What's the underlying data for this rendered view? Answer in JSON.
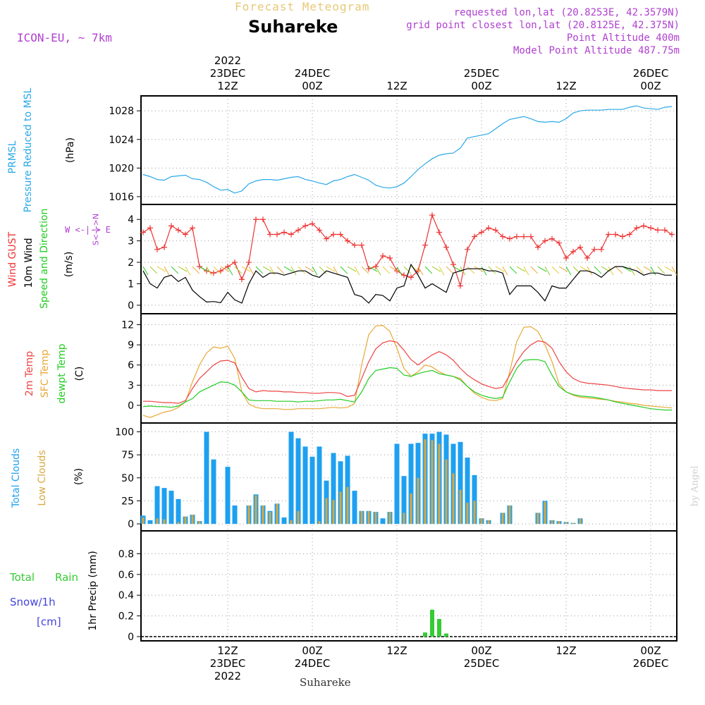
{
  "header": {
    "top_title": "Forecast Meteogram",
    "location": "Suhareke",
    "model": "ICON-EU, ~ 7km",
    "requested": "requested lon,lat (20.8253E, 42.3579N)",
    "grid_point": "grid point closest lon,lat (20.8125E, 42.375N)",
    "point_altitude": "Point Altitude 400m",
    "model_altitude": "Model Point Altitude 487.75m",
    "credit": "by Angel",
    "footer_location": "Suhareke"
  },
  "colors": {
    "pressure": "#2aa8e8",
    "gust": "#ee3333",
    "wind": "#000000",
    "temp2m": "#ee4444",
    "sfc_temp": "#e8a838",
    "dewpt": "#22cc22",
    "total_clouds": "#1ea0f0",
    "low_clouds": "#d8a840",
    "rain": "#33cc33",
    "snow": "#4444dd",
    "axis_purple": "#b040d0"
  },
  "time_axis": {
    "top_labels": [
      {
        "lines": [
          "2022",
          "23DEC",
          "12Z"
        ],
        "x": 12
      },
      {
        "lines": [
          "24DEC",
          "00Z"
        ],
        "x": 24
      },
      {
        "lines": [
          "12Z"
        ],
        "x": 36
      },
      {
        "lines": [
          "25DEC",
          "00Z"
        ],
        "x": 48
      },
      {
        "lines": [
          "12Z"
        ],
        "x": 60
      },
      {
        "lines": [
          "26DEC",
          "00Z"
        ],
        "x": 72
      }
    ],
    "bottom_labels": [
      {
        "lines": [
          "12Z",
          "23DEC",
          "2022"
        ],
        "x": 12
      },
      {
        "lines": [
          "00Z",
          "24DEC"
        ],
        "x": 24
      },
      {
        "lines": [
          "12Z"
        ],
        "x": 36
      },
      {
        "lines": [
          "00Z",
          "25DEC"
        ],
        "x": 48
      },
      {
        "lines": [
          "12Z"
        ],
        "x": 60
      },
      {
        "lines": [
          "00Z",
          "26DEC"
        ],
        "x": 72
      }
    ]
  },
  "labels": {
    "p1": {
      "a": "PRMSL",
      "b": "Pressure Reduced to MSL",
      "unit": "(hPa)"
    },
    "p2": {
      "a": "Wind GUST",
      "b": "10m Wind",
      "c": "Speed and Direction",
      "unit": "(m/s)",
      "compass": "W <-|-> E",
      "compass_ns": "S<-|->N"
    },
    "p3": {
      "a": "2m Temp",
      "b": "SFC Temp",
      "c": "dewpt Temp",
      "unit": "(C)"
    },
    "p4": {
      "a": "Total Clouds",
      "b": "Low Clouds",
      "unit": "(%)"
    },
    "p5": {
      "total": "Total",
      "rain": "Rain",
      "snow": "Snow/1h",
      "cm": "[cm]",
      "ylabel": "1hr Precip (mm)"
    }
  },
  "chart_data": [
    {
      "type": "line",
      "name": "pressure",
      "ylabel": "(hPa)",
      "ylim": [
        1015.5,
        1029.5
      ],
      "yticks": [
        "1016",
        "1020",
        "1024",
        "1028"
      ],
      "x": [
        0,
        1,
        2,
        3,
        4,
        5,
        6,
        7,
        8,
        9,
        10,
        11,
        12,
        13,
        14,
        15,
        16,
        17,
        18,
        19,
        20,
        21,
        22,
        23,
        24,
        25,
        26,
        27,
        28,
        29,
        30,
        31,
        32,
        33,
        34,
        35,
        36,
        37,
        38,
        39,
        40,
        41,
        42,
        43,
        44,
        45,
        46,
        47,
        48,
        49,
        50,
        51,
        52,
        53,
        54,
        55,
        56,
        57,
        58,
        59,
        60,
        61,
        62,
        63,
        64,
        65,
        66,
        67,
        68,
        69,
        70,
        71,
        72,
        73,
        74,
        75
      ],
      "series": [
        {
          "name": "PRMSL",
          "values": [
            1019.1,
            1018.8,
            1018.4,
            1018.3,
            1018.8,
            1018.9,
            1019.0,
            1018.5,
            1018.4,
            1018.0,
            1017.4,
            1016.9,
            1017.0,
            1016.5,
            1016.8,
            1017.8,
            1018.2,
            1018.4,
            1018.4,
            1018.3,
            1018.5,
            1018.7,
            1018.8,
            1018.4,
            1018.2,
            1017.9,
            1017.7,
            1018.2,
            1018.4,
            1018.8,
            1019.1,
            1018.7,
            1018.3,
            1017.6,
            1017.3,
            1017.2,
            1017.4,
            1017.9,
            1018.8,
            1019.8,
            1020.6,
            1021.3,
            1021.8,
            1022.0,
            1022.1,
            1022.8,
            1024.2,
            1024.4,
            1024.6,
            1024.8,
            1025.5,
            1026.2,
            1026.8,
            1027.0,
            1027.2,
            1026.9,
            1026.5,
            1026.4,
            1026.5,
            1026.4,
            1026.9,
            1027.7,
            1028.0,
            1028.1,
            1028.1,
            1028.1,
            1028.2,
            1028.2,
            1028.2,
            1028.5,
            1028.7,
            1028.4,
            1028.3,
            1028.2,
            1028.5,
            1028.6
          ]
        }
      ]
    },
    {
      "type": "line",
      "name": "wind",
      "ylabel": "(m/s)",
      "ylim": [
        -0.2,
        4.5
      ],
      "yticks": [
        "0",
        "1",
        "2",
        "3",
        "4"
      ],
      "x": [
        0,
        1,
        2,
        3,
        4,
        5,
        6,
        7,
        8,
        9,
        10,
        11,
        12,
        13,
        14,
        15,
        16,
        17,
        18,
        19,
        20,
        21,
        22,
        23,
        24,
        25,
        26,
        27,
        28,
        29,
        30,
        31,
        32,
        33,
        34,
        35,
        36,
        37,
        38,
        39,
        40,
        41,
        42,
        43,
        44,
        45,
        46,
        47,
        48,
        49,
        50,
        51,
        52,
        53,
        54,
        55,
        56,
        57,
        58,
        59,
        60,
        61,
        62,
        63,
        64,
        65,
        66,
        67,
        68,
        69,
        70,
        71,
        72,
        73,
        74,
        75
      ],
      "series": [
        {
          "name": "Wind GUST",
          "values": [
            3.4,
            3.6,
            2.6,
            2.7,
            3.7,
            3.5,
            3.3,
            3.6,
            1.8,
            1.6,
            1.5,
            1.6,
            1.8,
            2.0,
            1.2,
            2.0,
            4.0,
            4.0,
            3.3,
            3.3,
            3.4,
            3.3,
            3.5,
            3.7,
            3.8,
            3.5,
            3.1,
            3.3,
            3.3,
            3.0,
            2.8,
            2.8,
            1.7,
            1.8,
            2.3,
            2.2,
            1.6,
            1.4,
            1.3,
            1.6,
            2.8,
            4.2,
            3.4,
            2.7,
            1.9,
            0.9,
            2.6,
            3.2,
            3.4,
            3.6,
            3.5,
            3.2,
            3.1,
            3.2,
            3.2,
            3.2,
            2.7,
            3.0,
            3.1,
            2.9,
            2.2,
            2.5,
            2.7,
            2.2,
            2.6,
            2.6,
            3.3,
            3.3,
            3.2,
            3.3,
            3.6,
            3.7,
            3.6,
            3.5,
            3.5,
            3.3
          ]
        },
        {
          "name": "10m Wind",
          "values": [
            1.6,
            1.0,
            0.8,
            1.3,
            1.4,
            1.1,
            1.3,
            0.7,
            0.4,
            0.15,
            0.17,
            0.12,
            0.6,
            0.25,
            0.1,
            1.0,
            1.6,
            1.3,
            1.5,
            1.5,
            1.4,
            1.5,
            1.6,
            1.6,
            1.4,
            1.3,
            1.6,
            1.5,
            1.4,
            1.3,
            0.5,
            0.4,
            0.1,
            0.5,
            0.45,
            0.2,
            0.8,
            0.9,
            1.9,
            1.4,
            0.8,
            1.0,
            0.8,
            0.6,
            1.5,
            1.6,
            1.7,
            1.7,
            1.7,
            1.6,
            1.6,
            1.5,
            0.5,
            0.9,
            0.9,
            0.9,
            0.6,
            0.2,
            0.9,
            0.8,
            0.8,
            1.2,
            1.6,
            1.6,
            1.5,
            1.3,
            1.6,
            1.8,
            1.8,
            1.7,
            1.6,
            1.4,
            1.5,
            1.5,
            1.4,
            1.4
          ]
        }
      ]
    },
    {
      "type": "line",
      "name": "temperature",
      "ylabel": "(C)",
      "ylim": [
        -2.0,
        13.0
      ],
      "yticks": [
        "0",
        "3",
        "6",
        "9",
        "12"
      ],
      "x": [
        0,
        1,
        2,
        3,
        4,
        5,
        6,
        7,
        8,
        9,
        10,
        11,
        12,
        13,
        14,
        15,
        16,
        17,
        18,
        19,
        20,
        21,
        22,
        23,
        24,
        25,
        26,
        27,
        28,
        29,
        30,
        31,
        32,
        33,
        34,
        35,
        36,
        37,
        38,
        39,
        40,
        41,
        42,
        43,
        44,
        45,
        46,
        47,
        48,
        49,
        50,
        51,
        52,
        53,
        54,
        55,
        56,
        57,
        58,
        59,
        60,
        61,
        62,
        63,
        64,
        65,
        66,
        67,
        68,
        69,
        70,
        71,
        72,
        73,
        74,
        75
      ],
      "series": [
        {
          "name": "2m Temp",
          "values": [
            0.6,
            0.6,
            0.5,
            0.4,
            0.4,
            0.3,
            0.7,
            2.5,
            4.0,
            5.0,
            6.0,
            6.6,
            6.7,
            6.3,
            4.2,
            2.5,
            2.0,
            2.2,
            2.1,
            2.1,
            2.0,
            2.0,
            1.9,
            1.9,
            1.8,
            1.8,
            1.9,
            1.9,
            1.8,
            1.3,
            1.5,
            4.0,
            6.5,
            8.4,
            9.3,
            9.6,
            9.4,
            8.2,
            6.8,
            6.0,
            6.8,
            7.5,
            8.0,
            7.5,
            6.7,
            5.5,
            4.5,
            3.8,
            3.2,
            2.8,
            2.5,
            2.7,
            4.5,
            6.5,
            8.0,
            9.0,
            9.6,
            9.4,
            8.5,
            6.5,
            5.0,
            4.0,
            3.5,
            3.3,
            3.2,
            3.1,
            3.0,
            2.8,
            2.6,
            2.5,
            2.4,
            2.3,
            2.3,
            2.2,
            2.2,
            2.2
          ]
        },
        {
          "name": "SFC Temp",
          "values": [
            -1.5,
            -1.8,
            -1.4,
            -1.0,
            -0.8,
            -0.3,
            0.5,
            3.5,
            6.0,
            7.8,
            8.7,
            8.5,
            8.8,
            7.0,
            2.0,
            0.2,
            -0.3,
            -0.5,
            -0.5,
            -0.5,
            -0.6,
            -0.6,
            -0.5,
            -0.5,
            -0.5,
            -0.5,
            -0.4,
            -0.3,
            -0.4,
            -0.3,
            0.3,
            6.0,
            10.5,
            11.8,
            11.9,
            11.0,
            8.5,
            5.5,
            4.3,
            5.0,
            6.0,
            5.7,
            5.0,
            4.5,
            4.3,
            4.0,
            2.8,
            1.8,
            1.2,
            0.8,
            0.7,
            1.0,
            5.0,
            9.5,
            11.6,
            11.7,
            11.0,
            9.0,
            6.5,
            3.2,
            2.0,
            1.5,
            1.2,
            1.1,
            1.0,
            0.9,
            0.8,
            0.6,
            0.5,
            0.3,
            0.2,
            0.0,
            -0.1,
            -0.2,
            -0.3,
            -0.4
          ]
        },
        {
          "name": "dewpt Temp",
          "values": [
            -0.2,
            -0.1,
            -0.2,
            -0.2,
            -0.3,
            -0.1,
            0.5,
            1.0,
            2.0,
            2.5,
            3.0,
            3.5,
            3.4,
            3.0,
            2.0,
            0.8,
            0.7,
            0.7,
            0.7,
            0.6,
            0.6,
            0.6,
            0.5,
            0.6,
            0.6,
            0.7,
            0.8,
            0.8,
            0.9,
            0.7,
            0.5,
            2.0,
            4.0,
            5.2,
            5.4,
            5.6,
            5.5,
            4.5,
            4.3,
            4.7,
            5.0,
            5.2,
            4.7,
            4.5,
            4.3,
            3.8,
            2.8,
            2.0,
            1.5,
            1.2,
            1.0,
            1.2,
            3.5,
            5.5,
            6.7,
            6.8,
            6.8,
            6.5,
            4.5,
            2.8,
            2.0,
            1.6,
            1.4,
            1.3,
            1.2,
            1.0,
            0.8,
            0.5,
            0.3,
            0.1,
            -0.1,
            -0.3,
            -0.5,
            -0.6,
            -0.7,
            -0.7
          ]
        }
      ]
    },
    {
      "type": "bar",
      "name": "clouds",
      "ylabel": "(%)",
      "ylim": [
        -3,
        105
      ],
      "yticks": [
        "0",
        "25",
        "50",
        "75",
        "100"
      ],
      "x": [
        0,
        1,
        2,
        3,
        4,
        5,
        6,
        7,
        8,
        9,
        10,
        11,
        12,
        13,
        14,
        15,
        16,
        17,
        18,
        19,
        20,
        21,
        22,
        23,
        24,
        25,
        26,
        27,
        28,
        29,
        30,
        31,
        32,
        33,
        34,
        35,
        36,
        37,
        38,
        39,
        40,
        41,
        42,
        43,
        44,
        45,
        46,
        47,
        48,
        49,
        50,
        51,
        52,
        53,
        54,
        55,
        56,
        57,
        58,
        59,
        60,
        61,
        62,
        63,
        64,
        65,
        66,
        67,
        68,
        69,
        70,
        71,
        72,
        73,
        74,
        75
      ],
      "series": [
        {
          "name": "Total Clouds",
          "values": [
            9,
            4,
            41,
            39,
            36,
            27,
            8,
            10,
            3,
            100,
            70,
            0,
            62,
            20,
            0,
            20,
            32,
            20,
            14,
            22,
            7,
            100,
            93,
            84,
            73,
            84,
            47,
            77,
            68,
            74,
            36,
            14,
            14,
            13,
            6,
            13,
            87,
            52,
            87,
            88,
            98,
            98,
            100,
            97,
            87,
            89,
            72,
            53,
            6,
            4,
            0,
            12,
            20,
            0,
            0,
            0,
            12,
            25,
            4,
            3,
            2,
            1,
            6,
            0,
            0,
            0,
            0,
            0,
            0,
            0,
            0,
            0,
            0,
            0,
            0,
            0
          ]
        },
        {
          "name": "Low Clouds",
          "values": [
            7,
            0,
            6,
            5,
            0,
            2,
            8,
            10,
            3,
            0,
            0,
            0,
            0,
            0,
            0,
            20,
            31,
            20,
            13,
            22,
            0,
            4,
            14,
            0,
            0,
            3,
            28,
            26,
            35,
            40,
            0,
            14,
            14,
            13,
            0,
            13,
            0,
            12,
            33,
            50,
            92,
            91,
            87,
            70,
            55,
            37,
            23,
            25,
            6,
            4,
            0,
            12,
            20,
            0,
            0,
            0,
            12,
            24,
            4,
            3,
            2,
            1,
            6,
            0,
            0,
            0,
            0,
            0,
            0,
            0,
            0,
            0,
            0,
            0,
            0,
            0
          ]
        }
      ]
    },
    {
      "type": "bar",
      "name": "precipitation",
      "ylabel": "1hr Precip (mm)",
      "ylim": [
        0,
        0.98
      ],
      "yticks": [
        "0",
        "0.2",
        "0.4",
        "0.6",
        "0.8"
      ],
      "x": [
        40,
        41,
        42,
        43
      ],
      "series": [
        {
          "name": "Total Rain",
          "values": [
            0.04,
            0.26,
            0.17,
            0.03
          ]
        }
      ]
    }
  ]
}
